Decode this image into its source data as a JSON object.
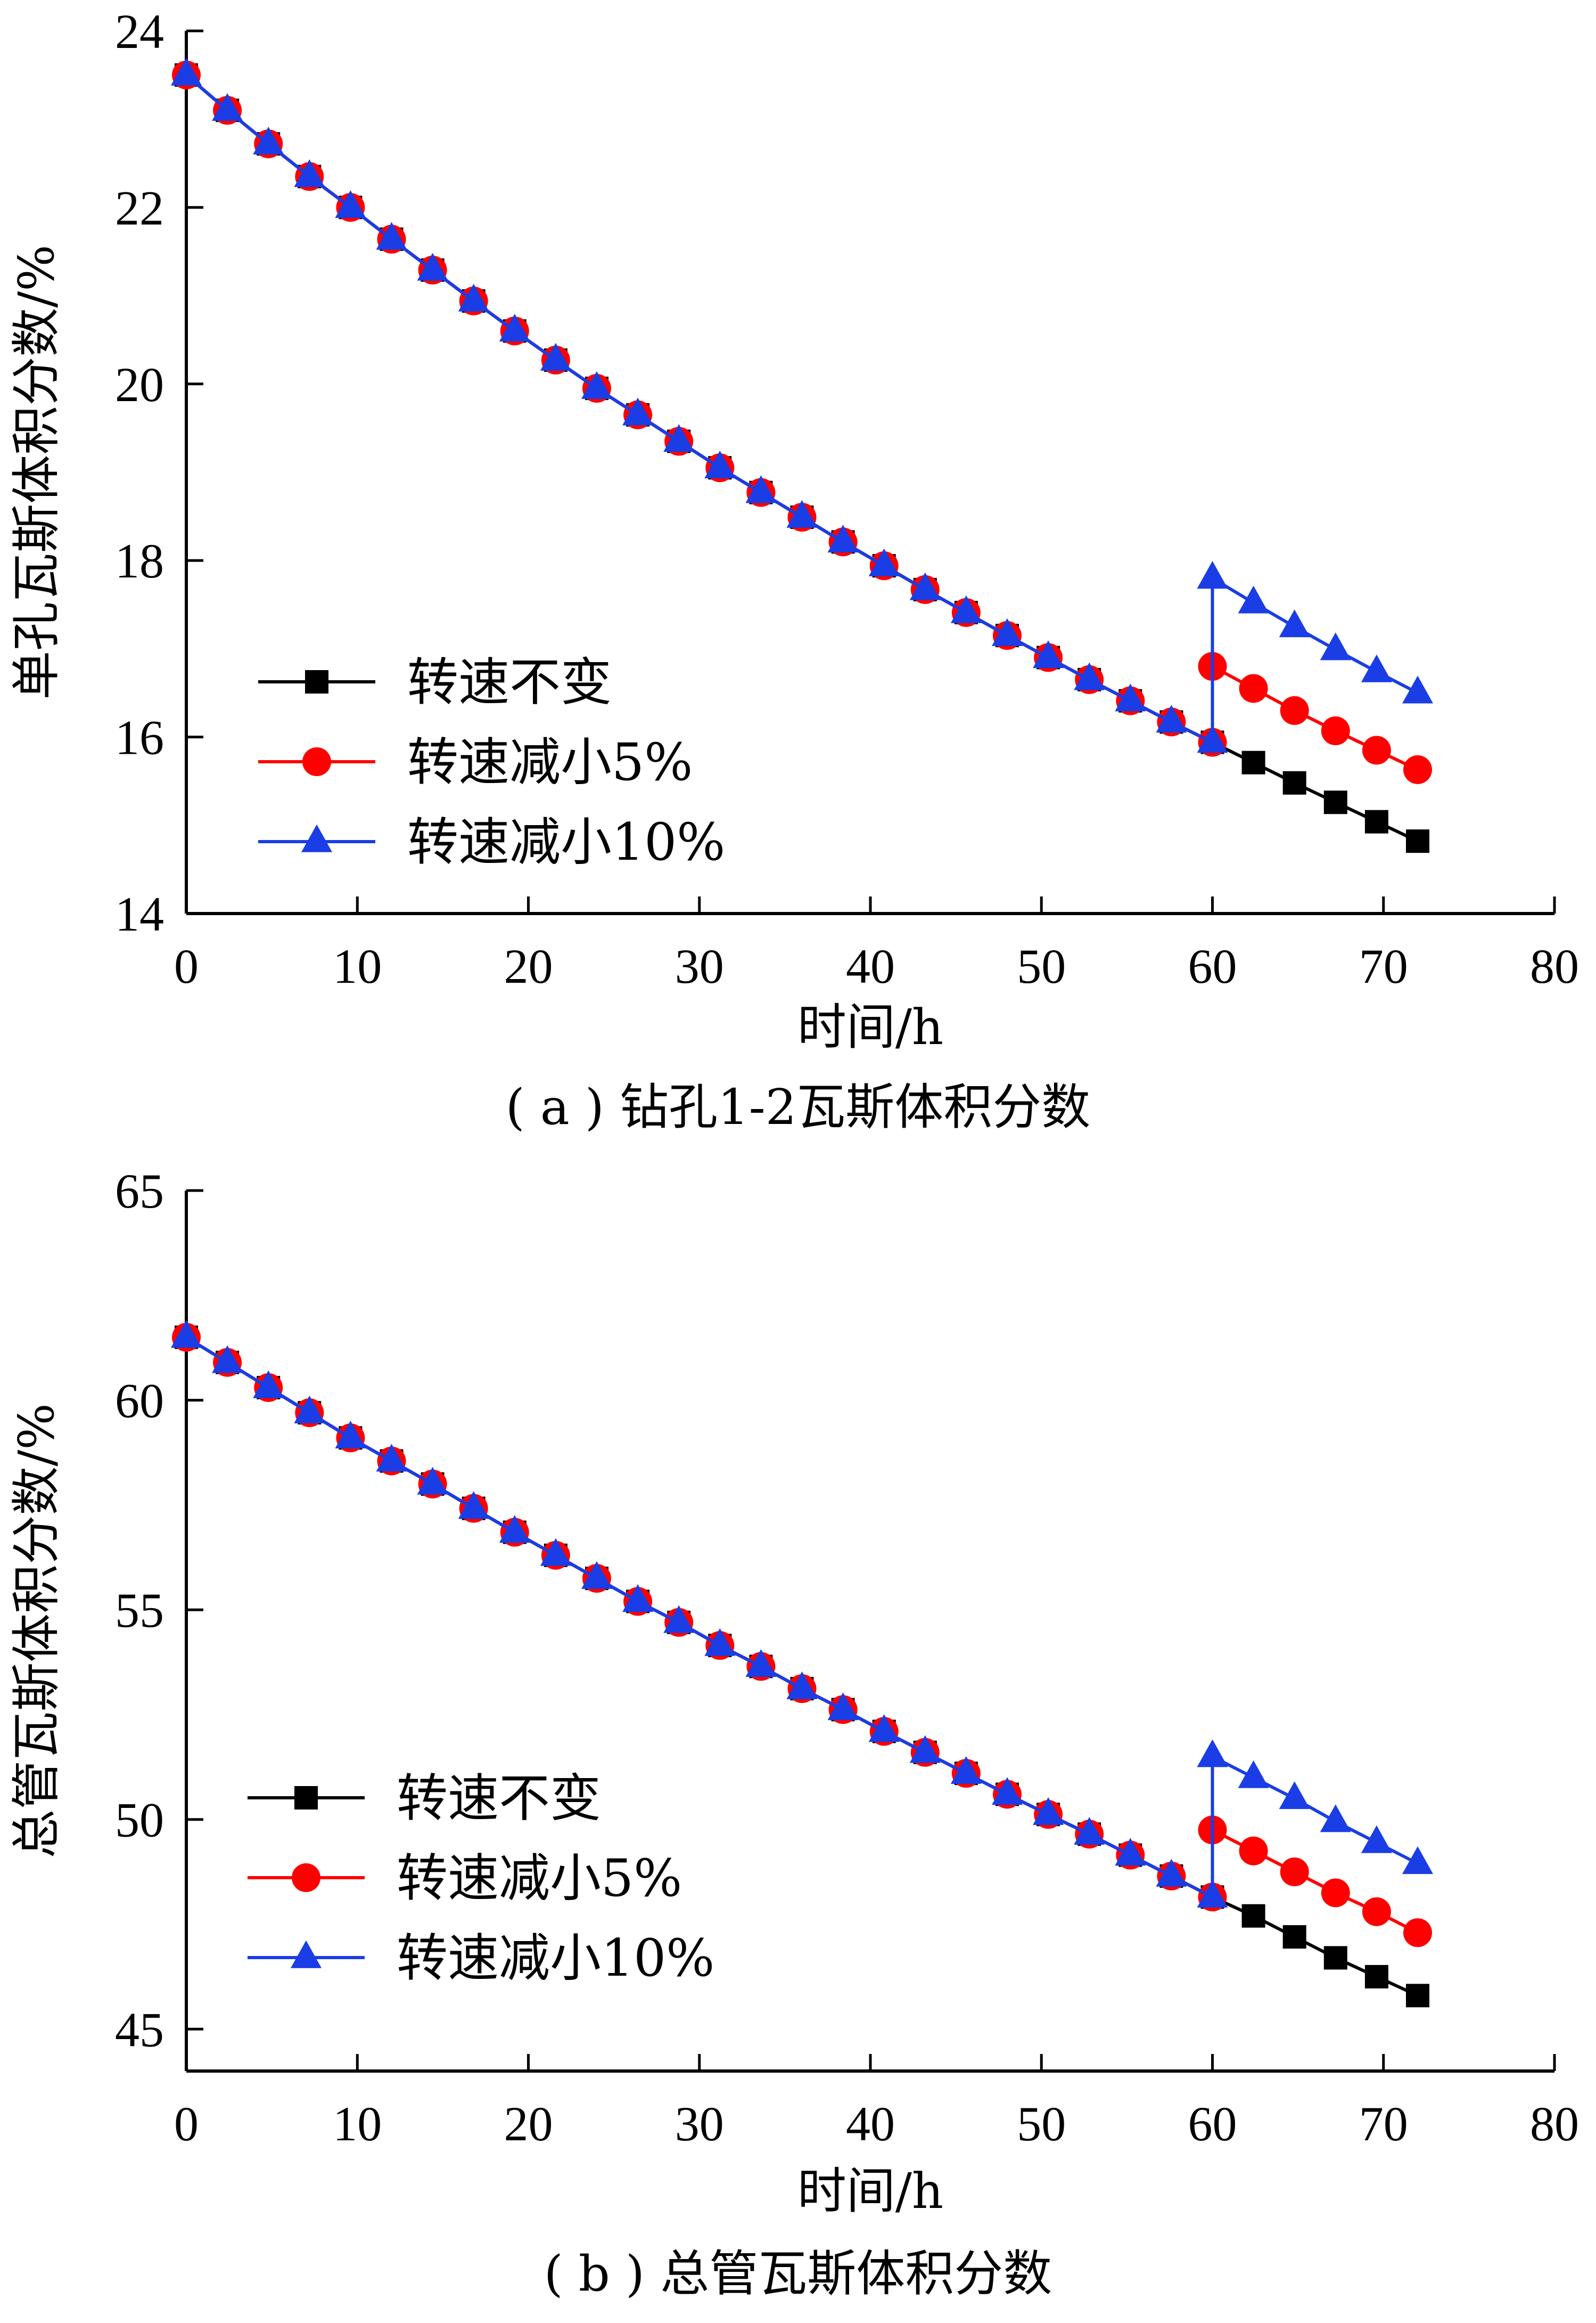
{
  "colors": {
    "s1": "#000000",
    "s2": "#ff0000",
    "s3": "#1a3de6"
  },
  "chart_data": [
    {
      "type": "line",
      "caption": "( a ) 钻孔1-2瓦斯体积分数",
      "xlabel": "时间/h",
      "ylabel": "单孔瓦斯体积分数/%",
      "xlim": [
        0,
        80
      ],
      "ylim": [
        14,
        24
      ],
      "xticks": [
        "0",
        "10",
        "20",
        "30",
        "40",
        "50",
        "60",
        "70",
        "80"
      ],
      "yticks": [
        "14",
        "16",
        "18",
        "20",
        "22",
        "24"
      ],
      "legend_position": "lower-left",
      "x": [
        0,
        2.4,
        4.8,
        7.2,
        9.6,
        12.0,
        14.4,
        16.8,
        19.2,
        21.6,
        24.0,
        26.4,
        28.8,
        31.2,
        33.6,
        36.0,
        38.4,
        40.8,
        43.2,
        45.6,
        48.0,
        50.4,
        52.8,
        55.2,
        57.6,
        60.0
      ],
      "shared_values": [
        23.5,
        23.1,
        22.72,
        22.35,
        22.0,
        21.64,
        21.29,
        20.94,
        20.6,
        20.27,
        19.95,
        19.65,
        19.35,
        19.05,
        18.77,
        18.49,
        18.21,
        17.94,
        17.67,
        17.41,
        17.15,
        16.9,
        16.65,
        16.41,
        16.17,
        15.94
      ],
      "series": [
        {
          "name": "转速不变",
          "marker": "square",
          "color_key": "s1",
          "tail_x": [
            62.4,
            64.8,
            67.2,
            69.6,
            72.0
          ],
          "tail_values": [
            15.71,
            15.48,
            15.26,
            15.04,
            14.82
          ]
        },
        {
          "name": "转速减小5%",
          "marker": "circle",
          "color_key": "s2",
          "tail_x": [
            60.0,
            62.4,
            64.8,
            67.2,
            69.6,
            72.0
          ],
          "tail_values": [
            16.8,
            16.55,
            16.3,
            16.07,
            15.85,
            15.63
          ]
        },
        {
          "name": "转速减小10%",
          "marker": "triangle",
          "color_key": "s3",
          "tail_x": [
            60.0,
            62.4,
            64.8,
            67.2,
            69.6,
            72.0
          ],
          "tail_values": [
            17.8,
            17.52,
            17.25,
            16.99,
            16.74,
            16.5
          ]
        }
      ]
    },
    {
      "type": "line",
      "caption": "( b ) 总管瓦斯体积分数",
      "xlabel": "时间/h",
      "ylabel": "总管瓦斯体积分数/%",
      "xlim": [
        0,
        80
      ],
      "ylim": [
        44,
        65
      ],
      "xticks": [
        "0",
        "10",
        "20",
        "30",
        "40",
        "50",
        "60",
        "70",
        "80"
      ],
      "yticks": [
        "45",
        "50",
        "55",
        "60",
        "65"
      ],
      "legend_position": "lower-left",
      "x": [
        0,
        2.4,
        4.8,
        7.2,
        9.6,
        12.0,
        14.4,
        16.8,
        19.2,
        21.6,
        24.0,
        26.4,
        28.8,
        31.2,
        33.6,
        36.0,
        38.4,
        40.8,
        43.2,
        45.6,
        48.0,
        50.4,
        52.8,
        55.2,
        57.6,
        60.0
      ],
      "shared_values": [
        61.5,
        60.9,
        60.3,
        59.7,
        59.1,
        58.55,
        58.0,
        57.42,
        56.85,
        56.3,
        55.75,
        55.2,
        54.7,
        54.15,
        53.65,
        53.12,
        52.62,
        52.1,
        51.6,
        51.1,
        50.6,
        50.12,
        49.65,
        49.15,
        48.65,
        48.15
      ],
      "series": [
        {
          "name": "转速不变",
          "marker": "square",
          "color_key": "s1",
          "tail_x": [
            62.4,
            64.8,
            67.2,
            69.6,
            72.0
          ],
          "tail_values": [
            47.7,
            47.2,
            46.7,
            46.25,
            45.8
          ]
        },
        {
          "name": "转速减小5%",
          "marker": "circle",
          "color_key": "s2",
          "tail_x": [
            60.0,
            62.4,
            64.8,
            67.2,
            69.6,
            72.0
          ],
          "tail_values": [
            49.75,
            49.25,
            48.75,
            48.25,
            47.8,
            47.3
          ]
        },
        {
          "name": "转速减小10%",
          "marker": "triangle",
          "color_key": "s3",
          "tail_x": [
            60.0,
            62.4,
            64.8,
            67.2,
            69.6,
            72.0
          ],
          "tail_values": [
            51.5,
            51.0,
            50.5,
            49.95,
            49.45,
            48.95
          ]
        }
      ]
    }
  ]
}
